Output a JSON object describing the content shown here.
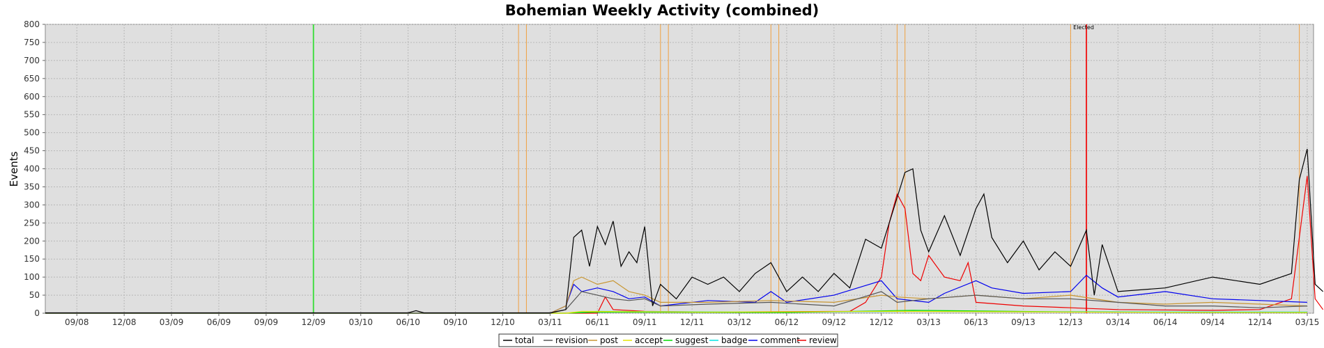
{
  "chart_data": {
    "type": "line",
    "title": "Bohemian Weekly Activity (combined)",
    "xlabel": "",
    "ylabel": "Events",
    "ylim": [
      0,
      800
    ],
    "yticks": [
      0,
      50,
      100,
      150,
      200,
      250,
      300,
      350,
      400,
      450,
      500,
      550,
      600,
      650,
      700,
      750,
      800
    ],
    "x_range_months": [
      "2008-07",
      "2015-03"
    ],
    "x_tick_labels": [
      "09/08",
      "12/08",
      "03/09",
      "06/09",
      "09/09",
      "12/09",
      "03/10",
      "06/10",
      "09/10",
      "12/10",
      "03/11",
      "06/11",
      "09/11",
      "12/11",
      "03/12",
      "06/12",
      "09/12",
      "12/12",
      "03/13",
      "06/13",
      "09/13",
      "12/13",
      "03/14",
      "06/14",
      "09/14",
      "12/14",
      "03/15"
    ],
    "grid": true,
    "legend_position": "bottom",
    "markers": {
      "green": [
        "2009-12"
      ],
      "orange": [
        "2011-01",
        "2011-01.5",
        "2011-10",
        "2011-10.5",
        "2012-05",
        "2012-05.5",
        "2013-01",
        "2013-01.5",
        "2013-12",
        "2015-02.5"
      ],
      "red": [
        "2014-01"
      ],
      "red_label": "Elected"
    },
    "series": [
      {
        "name": "total",
        "color": "#000000",
        "points": [
          [
            "2008-07",
            1
          ],
          [
            "2009-01",
            1
          ],
          [
            "2009-07",
            1
          ],
          [
            "2010-01",
            1
          ],
          [
            "2010-06",
            1
          ],
          [
            "2010-06.5",
            7
          ],
          [
            "2010-07",
            1
          ],
          [
            "2010-12",
            1
          ],
          [
            "2011-01",
            1
          ],
          [
            "2011-03",
            1
          ],
          [
            "2011-04",
            10
          ],
          [
            "2011-04.5",
            210
          ],
          [
            "2011-05",
            230
          ],
          [
            "2011-05.5",
            130
          ],
          [
            "2011-06",
            240
          ],
          [
            "2011-06.5",
            190
          ],
          [
            "2011-07",
            255
          ],
          [
            "2011-07.5",
            130
          ],
          [
            "2011-08",
            170
          ],
          [
            "2011-08.5",
            140
          ],
          [
            "2011-09",
            240
          ],
          [
            "2011-09.5",
            20
          ],
          [
            "2011-10",
            80
          ],
          [
            "2011-11",
            40
          ],
          [
            "2011-12",
            100
          ],
          [
            "2012-01",
            80
          ],
          [
            "2012-02",
            100
          ],
          [
            "2012-03",
            60
          ],
          [
            "2012-04",
            110
          ],
          [
            "2012-05",
            140
          ],
          [
            "2012-06",
            60
          ],
          [
            "2012-07",
            100
          ],
          [
            "2012-08",
            60
          ],
          [
            "2012-09",
            110
          ],
          [
            "2012-10",
            70
          ],
          [
            "2012-11",
            205
          ],
          [
            "2012-12",
            180
          ],
          [
            "2013-01",
            320
          ],
          [
            "2013-01.5",
            390
          ],
          [
            "2013-02",
            400
          ],
          [
            "2013-02.5",
            230
          ],
          [
            "2013-03",
            170
          ],
          [
            "2013-04",
            270
          ],
          [
            "2013-05",
            160
          ],
          [
            "2013-06",
            290
          ],
          [
            "2013-06.5",
            330
          ],
          [
            "2013-07",
            210
          ],
          [
            "2013-08",
            140
          ],
          [
            "2013-09",
            200
          ],
          [
            "2013-10",
            120
          ],
          [
            "2013-11",
            170
          ],
          [
            "2013-12",
            130
          ],
          [
            "2014-01",
            230
          ],
          [
            "2014-01.5",
            50
          ],
          [
            "2014-02",
            190
          ],
          [
            "2014-03",
            60
          ],
          [
            "2014-06",
            70
          ],
          [
            "2014-09",
            100
          ],
          [
            "2014-12",
            80
          ],
          [
            "2015-02",
            110
          ],
          [
            "2015-02.5",
            370
          ],
          [
            "2015-03",
            455
          ],
          [
            "2015-03.5",
            80
          ],
          [
            "2015-04",
            60
          ]
        ]
      },
      {
        "name": "revision",
        "color": "#555555",
        "points": [
          [
            "2008-07",
            0
          ],
          [
            "2011-03",
            0
          ],
          [
            "2011-04",
            10
          ],
          [
            "2011-05",
            60
          ],
          [
            "2011-06",
            50
          ],
          [
            "2011-07",
            40
          ],
          [
            "2011-08",
            35
          ],
          [
            "2011-09",
            40
          ],
          [
            "2011-10",
            20
          ],
          [
            "2012-01",
            25
          ],
          [
            "2012-05",
            30
          ],
          [
            "2012-09",
            20
          ],
          [
            "2012-12",
            60
          ],
          [
            "2013-01",
            30
          ],
          [
            "2013-03",
            40
          ],
          [
            "2013-06",
            50
          ],
          [
            "2013-09",
            40
          ],
          [
            "2013-12",
            40
          ],
          [
            "2014-03",
            30
          ],
          [
            "2014-06",
            20
          ],
          [
            "2014-09",
            20
          ],
          [
            "2014-12",
            15
          ],
          [
            "2015-03",
            20
          ]
        ]
      },
      {
        "name": "post",
        "color": "#c89632",
        "points": [
          [
            "2008-07",
            0
          ],
          [
            "2011-03",
            0
          ],
          [
            "2011-04",
            20
          ],
          [
            "2011-04.5",
            90
          ],
          [
            "2011-05",
            100
          ],
          [
            "2011-06",
            80
          ],
          [
            "2011-07",
            90
          ],
          [
            "2011-08",
            60
          ],
          [
            "2011-09",
            50
          ],
          [
            "2011-10",
            30
          ],
          [
            "2012-01",
            30
          ],
          [
            "2012-05",
            35
          ],
          [
            "2012-09",
            30
          ],
          [
            "2012-12",
            50
          ],
          [
            "2013-01",
            45
          ],
          [
            "2013-03",
            40
          ],
          [
            "2013-06",
            50
          ],
          [
            "2013-09",
            40
          ],
          [
            "2013-12",
            50
          ],
          [
            "2014-03",
            30
          ],
          [
            "2014-06",
            25
          ],
          [
            "2014-09",
            30
          ],
          [
            "2014-12",
            25
          ],
          [
            "2015-03",
            20
          ]
        ]
      },
      {
        "name": "accept",
        "color": "#e6e600",
        "points": [
          [
            "2008-07",
            0
          ],
          [
            "2011-04",
            0
          ],
          [
            "2011-05",
            5
          ],
          [
            "2012-01",
            3
          ],
          [
            "2013-01",
            5
          ],
          [
            "2014-01",
            3
          ],
          [
            "2015-03",
            2
          ]
        ]
      },
      {
        "name": "suggest",
        "color": "#00dd00",
        "points": [
          [
            "2008-07",
            0
          ],
          [
            "2011-04",
            0
          ],
          [
            "2011-06",
            3
          ],
          [
            "2012-06",
            2
          ],
          [
            "2013-02",
            8
          ],
          [
            "2014-01",
            3
          ],
          [
            "2015-03",
            2
          ]
        ]
      },
      {
        "name": "badge",
        "color": "#00e6e6",
        "points": [
          [
            "2008-07",
            0
          ],
          [
            "2011-04",
            0
          ],
          [
            "2011-06",
            5
          ],
          [
            "2012-06",
            3
          ],
          [
            "2013-02",
            5
          ],
          [
            "2014-01",
            4
          ],
          [
            "2015-03",
            3
          ]
        ]
      },
      {
        "name": "comment",
        "color": "#0000ee",
        "points": [
          [
            "2008-07",
            0
          ],
          [
            "2011-03",
            0
          ],
          [
            "2011-04",
            20
          ],
          [
            "2011-04.5",
            80
          ],
          [
            "2011-05",
            60
          ],
          [
            "2011-06",
            70
          ],
          [
            "2011-07",
            60
          ],
          [
            "2011-08",
            40
          ],
          [
            "2011-09",
            45
          ],
          [
            "2011-10",
            20
          ],
          [
            "2012-01",
            35
          ],
          [
            "2012-04",
            30
          ],
          [
            "2012-05",
            60
          ],
          [
            "2012-06",
            30
          ],
          [
            "2012-09",
            50
          ],
          [
            "2012-12",
            90
          ],
          [
            "2013-01",
            40
          ],
          [
            "2013-03",
            30
          ],
          [
            "2013-04",
            55
          ],
          [
            "2013-06",
            90
          ],
          [
            "2013-07",
            70
          ],
          [
            "2013-09",
            55
          ],
          [
            "2013-12",
            60
          ],
          [
            "2014-01",
            105
          ],
          [
            "2014-02",
            70
          ],
          [
            "2014-03",
            45
          ],
          [
            "2014-06",
            60
          ],
          [
            "2014-09",
            40
          ],
          [
            "2014-12",
            35
          ],
          [
            "2015-03",
            30
          ]
        ]
      },
      {
        "name": "review",
        "color": "#ee0000",
        "points": [
          [
            "2008-07",
            0
          ],
          [
            "2011-06",
            0
          ],
          [
            "2011-06.5",
            45
          ],
          [
            "2011-07",
            10
          ],
          [
            "2011-09",
            5
          ],
          [
            "2012-01",
            3
          ],
          [
            "2012-10",
            5
          ],
          [
            "2012-11",
            30
          ],
          [
            "2012-12",
            100
          ],
          [
            "2012-12.5",
            250
          ],
          [
            "2013-01",
            330
          ],
          [
            "2013-01.5",
            290
          ],
          [
            "2013-02",
            110
          ],
          [
            "2013-02.5",
            90
          ],
          [
            "2013-03",
            160
          ],
          [
            "2013-04",
            100
          ],
          [
            "2013-05",
            90
          ],
          [
            "2013-05.5",
            140
          ],
          [
            "2013-06",
            30
          ],
          [
            "2013-09",
            20
          ],
          [
            "2013-12",
            15
          ],
          [
            "2014-03",
            10
          ],
          [
            "2014-09",
            8
          ],
          [
            "2014-12",
            10
          ],
          [
            "2015-02",
            40
          ],
          [
            "2015-03",
            380
          ],
          [
            "2015-03.5",
            40
          ],
          [
            "2015-04",
            10
          ]
        ]
      }
    ]
  }
}
